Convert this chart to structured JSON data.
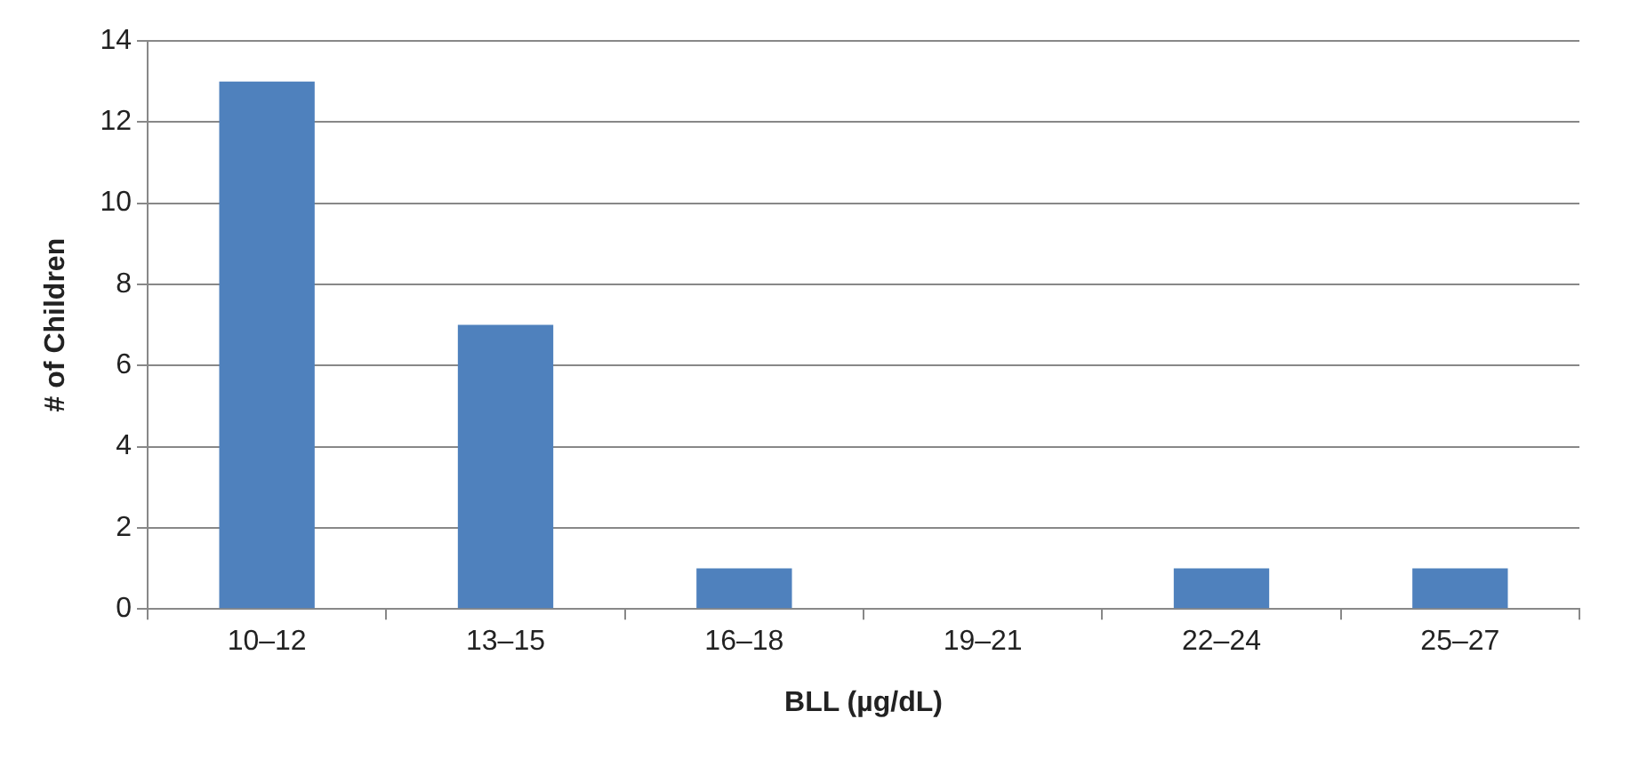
{
  "chart_data": {
    "type": "bar",
    "xlabel": "BLL (µg/dL)",
    "ylabel": "# of Children",
    "categories": [
      "10–12",
      "13–15",
      "16–18",
      "19–21",
      "22–24",
      "25–27"
    ],
    "values": [
      13,
      7,
      1,
      0,
      1,
      1
    ],
    "color": "#4f81bd",
    "ylim": [
      0,
      14
    ],
    "yticks": [
      0,
      2,
      4,
      6,
      8,
      10,
      12,
      14
    ],
    "grid": "y",
    "legend": false
  }
}
